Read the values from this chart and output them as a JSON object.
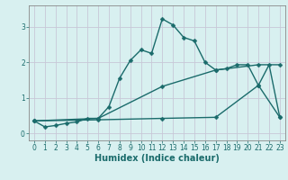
{
  "title": "",
  "xlabel": "Humidex (Indice chaleur)",
  "ylabel": "",
  "bg_color": "#d8f0f0",
  "plot_bg_color": "#d8f0f0",
  "line_color": "#1a6b6b",
  "grid_color": "#c8c8d8",
  "xlim": [
    -0.5,
    23.5
  ],
  "ylim": [
    -0.2,
    3.6
  ],
  "xticks": [
    0,
    1,
    2,
    3,
    4,
    5,
    6,
    7,
    8,
    9,
    10,
    11,
    12,
    13,
    14,
    15,
    16,
    17,
    18,
    19,
    20,
    21,
    22,
    23
  ],
  "yticks": [
    0,
    1,
    2,
    3
  ],
  "series1_x": [
    0,
    1,
    2,
    3,
    4,
    5,
    6,
    7,
    8,
    9,
    10,
    11,
    12,
    13,
    14,
    15,
    16,
    17,
    18,
    19,
    20,
    21,
    22,
    23
  ],
  "series1_y": [
    0.35,
    0.18,
    0.22,
    0.28,
    0.32,
    0.42,
    0.42,
    0.75,
    1.55,
    2.05,
    2.35,
    2.25,
    3.22,
    3.05,
    2.7,
    2.6,
    2.0,
    1.78,
    1.82,
    1.93,
    1.93,
    1.35,
    1.93,
    0.45
  ],
  "series2_x": [
    0,
    6,
    12,
    17,
    21,
    23
  ],
  "series2_y": [
    0.35,
    0.42,
    1.32,
    1.78,
    1.93,
    1.93
  ],
  "series3_x": [
    0,
    6,
    12,
    17,
    21,
    23
  ],
  "series3_y": [
    0.35,
    0.38,
    0.42,
    0.45,
    1.35,
    0.45
  ],
  "markersize": 2.5,
  "linewidth": 1.0,
  "tick_fontsize": 5.5,
  "label_fontsize": 7.0
}
